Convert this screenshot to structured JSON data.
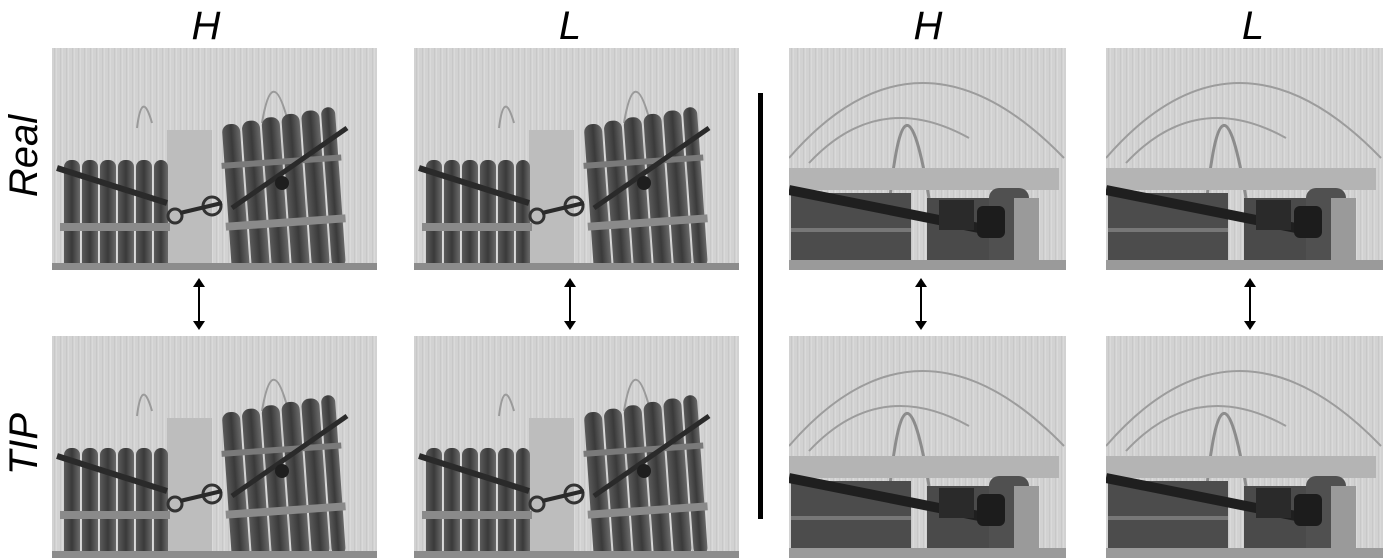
{
  "columns": [
    {
      "title": "H"
    },
    {
      "title": "L"
    },
    {
      "title": "H"
    },
    {
      "title": "L"
    }
  ],
  "rows": [
    {
      "label": "Real"
    },
    {
      "label": "TIP"
    }
  ],
  "panels": [
    {
      "scene": "bottles",
      "channel": "H",
      "type": "Real"
    },
    {
      "scene": "bottles",
      "channel": "L",
      "type": "Real"
    },
    {
      "scene": "wrench",
      "channel": "H",
      "type": "Real"
    },
    {
      "scene": "wrench",
      "channel": "L",
      "type": "Real"
    },
    {
      "scene": "bottles",
      "channel": "H",
      "type": "TIP"
    },
    {
      "scene": "bottles",
      "channel": "L",
      "type": "TIP"
    },
    {
      "scene": "wrench",
      "channel": "H",
      "type": "TIP"
    },
    {
      "scene": "wrench",
      "channel": "L",
      "type": "TIP"
    }
  ],
  "icons": {
    "pair_arrow": "double-arrow-vertical-icon"
  }
}
